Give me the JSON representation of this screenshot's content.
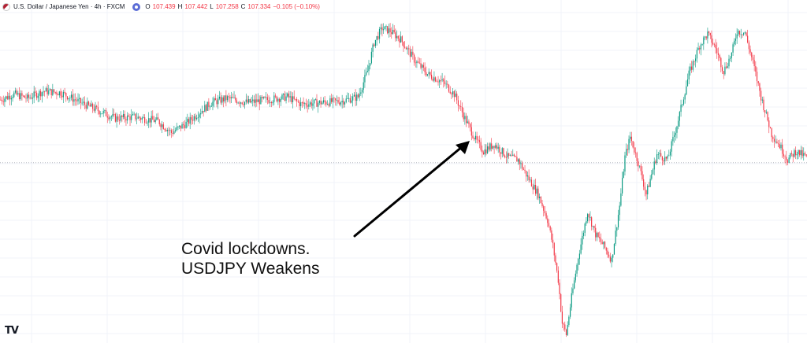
{
  "header": {
    "flag_icon": "us-japan-flag-icon",
    "symbol": "U.S. Dollar / Japanese Yen · 4h · FXCM",
    "eye_icon": "eye-icon",
    "ohlc": [
      {
        "key": "O",
        "value": "107.439"
      },
      {
        "key": "H",
        "value": "107.442"
      },
      {
        "key": "L",
        "value": "107.258"
      },
      {
        "key": "C",
        "value": "107.334"
      },
      {
        "key": "",
        "value": "−0.105 (−0.10%)"
      }
    ],
    "value_color": "#f23645"
  },
  "annotation": {
    "line1": "Covid lockdowns.",
    "line2": "USDJPY Weakens"
  },
  "logo": {
    "text": "TV",
    "icon": "tradingview-logo-icon"
  },
  "colors": {
    "up": "#089981",
    "down": "#f23645",
    "grid": "#f0f3fa",
    "arrow": "#000000"
  },
  "chart_data": {
    "type": "candlestick",
    "series_name": "USDJPY",
    "grid": true,
    "reference_price": 107.3,
    "ylim": [
      101.0,
      112.6
    ],
    "anchors": [
      [
        0,
        109.5
      ],
      [
        10,
        109.7
      ],
      [
        20,
        109.55
      ],
      [
        32,
        109.8
      ],
      [
        45,
        109.75
      ],
      [
        60,
        109.4
      ],
      [
        72,
        109.15
      ],
      [
        86,
        108.85
      ],
      [
        100,
        108.9
      ],
      [
        118,
        108.75
      ],
      [
        128,
        108.35
      ],
      [
        140,
        108.7
      ],
      [
        150,
        109.1
      ],
      [
        158,
        109.4
      ],
      [
        170,
        109.55
      ],
      [
        185,
        109.4
      ],
      [
        200,
        109.5
      ],
      [
        215,
        109.6
      ],
      [
        225,
        109.35
      ],
      [
        240,
        109.4
      ],
      [
        255,
        109.45
      ],
      [
        268,
        109.6
      ],
      [
        275,
        110.5
      ],
      [
        280,
        111.5
      ],
      [
        286,
        112.0
      ],
      [
        292,
        111.9
      ],
      [
        300,
        111.6
      ],
      [
        310,
        110.9
      ],
      [
        320,
        110.4
      ],
      [
        332,
        110.1
      ],
      [
        340,
        109.7
      ],
      [
        348,
        108.85
      ],
      [
        356,
        108.1
      ],
      [
        362,
        107.7
      ],
      [
        370,
        107.95
      ],
      [
        380,
        107.5
      ],
      [
        388,
        107.4
      ],
      [
        395,
        106.8
      ],
      [
        403,
        106.2
      ],
      [
        410,
        105.3
      ],
      [
        414,
        104.4
      ],
      [
        418,
        103.2
      ],
      [
        421,
        101.7
      ],
      [
        424,
        101.3
      ],
      [
        428,
        102.6
      ],
      [
        433,
        104.0
      ],
      [
        440,
        105.6
      ],
      [
        446,
        104.8
      ],
      [
        452,
        104.4
      ],
      [
        458,
        103.9
      ],
      [
        464,
        105.8
      ],
      [
        468,
        107.5
      ],
      [
        472,
        108.2
      ],
      [
        478,
        107.3
      ],
      [
        484,
        106.2
      ],
      [
        492,
        107.6
      ],
      [
        500,
        107.4
      ],
      [
        508,
        108.8
      ],
      [
        516,
        110.4
      ],
      [
        524,
        111.4
      ],
      [
        530,
        111.8
      ],
      [
        536,
        111.3
      ],
      [
        542,
        110.5
      ],
      [
        548,
        111.1
      ],
      [
        552,
        111.9
      ],
      [
        558,
        111.85
      ],
      [
        564,
        110.8
      ],
      [
        570,
        109.6
      ],
      [
        578,
        108.3
      ],
      [
        584,
        107.9
      ],
      [
        590,
        107.4
      ],
      [
        596,
        107.7
      ],
      [
        604,
        107.5
      ]
    ]
  }
}
